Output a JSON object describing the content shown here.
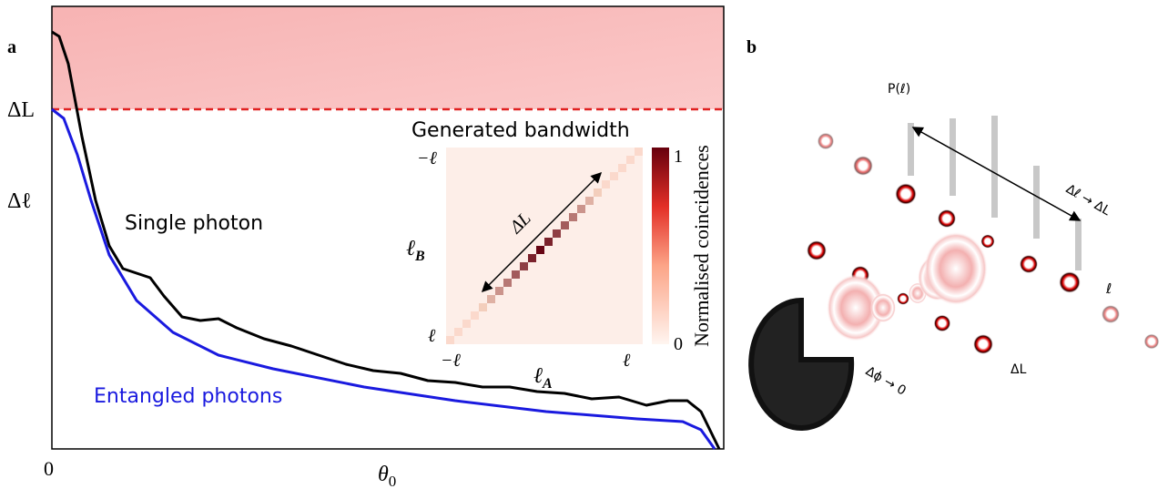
{
  "panel_a": {
    "label": "a",
    "y_labels": [
      "ΔL",
      "Δℓ"
    ],
    "x_origin": "0",
    "x_label": {
      "symbol": "θ",
      "subscript": "0"
    },
    "curves": [
      "Single photon",
      "Entangled photons"
    ],
    "inset": {
      "title": "Generated bandwidth",
      "y_ticks": [
        "−ℓ",
        "ℓ"
      ],
      "y_label": {
        "symbol": "ℓ",
        "subscript": "B"
      },
      "x_ticks": [
        "−ℓ",
        "ℓ"
      ],
      "x_label": {
        "symbol": "ℓ",
        "subscript": "A"
      },
      "arrow_label": "ΔL",
      "colorbar_ticks": [
        "1",
        "0"
      ],
      "colorbar_label": "Normalised coincidences"
    }
  },
  "panel_b": {
    "label": "b",
    "texts": [
      "P(ℓ)",
      "Δℓ → ΔL",
      "ℓ",
      "Δϕ → 0",
      "ΔL"
    ]
  }
}
